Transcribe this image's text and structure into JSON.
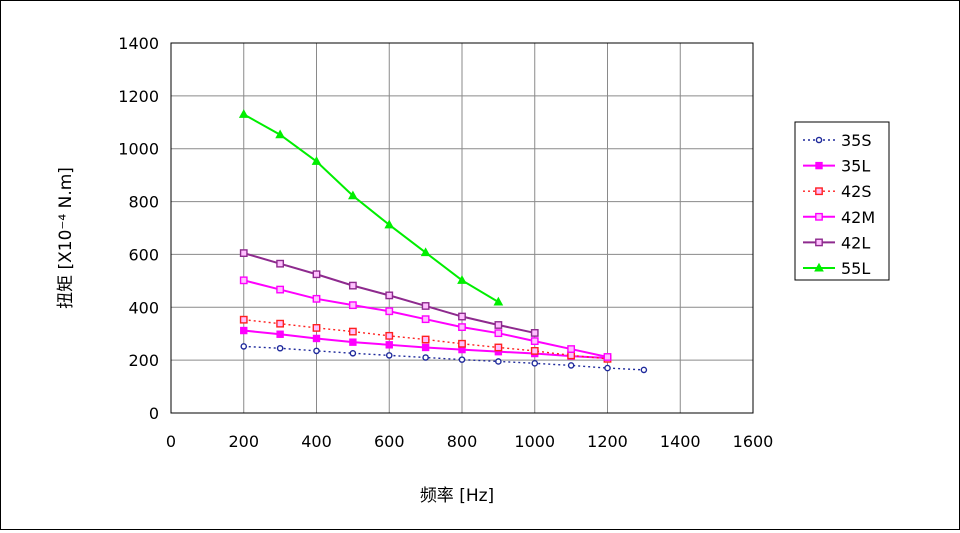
{
  "chart_data": {
    "type": "line",
    "title": "",
    "xlabel": "频率 [Hz]",
    "ylabel": "扭矩 [X10⁻⁴ N.m]",
    "xlim": [
      0,
      1600
    ],
    "ylim": [
      0,
      1400
    ],
    "xticks": [
      "0",
      "200",
      "400",
      "600",
      "800",
      "1000",
      "1200",
      "1400",
      "1600"
    ],
    "yticks": [
      "0",
      "200",
      "400",
      "600",
      "800",
      "1000",
      "1200",
      "1400"
    ],
    "grid": true,
    "legend_position": "right",
    "series": [
      {
        "name": "35S",
        "color": "#1f2a9c",
        "dash": "dotted",
        "marker": "circle-open",
        "x": [
          200,
          300,
          400,
          500,
          600,
          700,
          800,
          900,
          1000,
          1100,
          1200,
          1300
        ],
        "y": [
          252,
          245,
          235,
          226,
          218,
          210,
          202,
          195,
          188,
          180,
          170,
          163
        ]
      },
      {
        "name": "35L",
        "color": "#ff00ff",
        "dash": "solid",
        "marker": "square-filled",
        "x": [
          200,
          300,
          400,
          500,
          600,
          700,
          800,
          900,
          1000,
          1100,
          1200
        ],
        "y": [
          312,
          298,
          282,
          268,
          258,
          248,
          240,
          232,
          225,
          215,
          208
        ]
      },
      {
        "name": "42S",
        "color": "#ff2020",
        "dash": "dotted",
        "marker": "square-open",
        "x": [
          200,
          300,
          400,
          500,
          600,
          700,
          800,
          900,
          1000,
          1100,
          1200
        ],
        "y": [
          353,
          338,
          322,
          308,
          292,
          278,
          262,
          248,
          235,
          218,
          205
        ]
      },
      {
        "name": "42M",
        "color": "#ff00ff",
        "dash": "solid",
        "marker": "square-open",
        "x": [
          200,
          300,
          400,
          500,
          600,
          700,
          800,
          900,
          1000,
          1100,
          1200
        ],
        "y": [
          502,
          467,
          432,
          408,
          385,
          355,
          325,
          302,
          272,
          242,
          212
        ]
      },
      {
        "name": "42L",
        "color": "#8e2a8e",
        "dash": "solid",
        "marker": "square-open",
        "x": [
          200,
          300,
          400,
          500,
          600,
          700,
          800,
          900,
          1000
        ],
        "y": [
          605,
          565,
          525,
          482,
          445,
          405,
          365,
          333,
          303
        ]
      },
      {
        "name": "55L",
        "color": "#00ee00",
        "dash": "solid",
        "marker": "triangle-filled",
        "x": [
          200,
          300,
          400,
          500,
          600,
          700,
          800,
          900
        ],
        "y": [
          1130,
          1053,
          952,
          822,
          712,
          607,
          502,
          420
        ]
      }
    ]
  }
}
